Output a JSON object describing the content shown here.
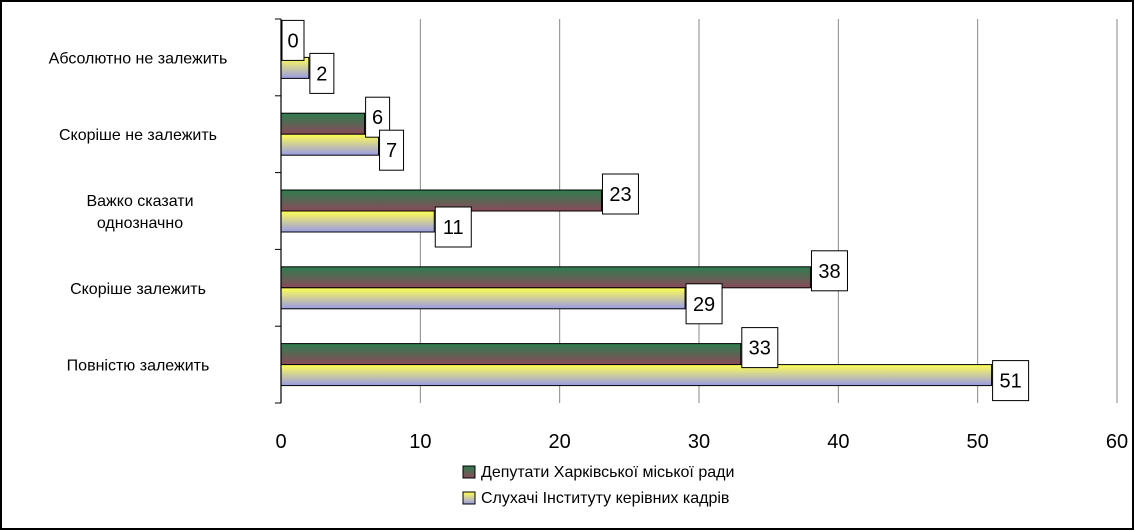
{
  "chart_data": {
    "type": "bar",
    "orientation": "horizontal",
    "categories": [
      [
        "Абсолютно не залежить"
      ],
      [
        "Скоріше не залежить"
      ],
      [
        "Важко сказати",
        "однозначно"
      ],
      [
        "Скоріше залежить"
      ],
      [
        "Повністю залежить"
      ]
    ],
    "series": [
      {
        "name": "Депутати Харківської міської ради",
        "values": [
          0,
          6,
          23,
          38,
          33
        ],
        "color_top": "#2e7d4f",
        "color_bottom": "#8a4a5a"
      },
      {
        "name": "Слухачі Інституту керівних кадрів",
        "values": [
          2,
          7,
          11,
          29,
          51
        ],
        "color_top": "#ffff55",
        "color_bottom": "#9a9ae6"
      }
    ],
    "xlim": [
      0,
      60
    ],
    "xticks": [
      "0",
      "10",
      "20",
      "30",
      "40",
      "50",
      "60"
    ],
    "grid": true,
    "legend_position": "bottom"
  }
}
